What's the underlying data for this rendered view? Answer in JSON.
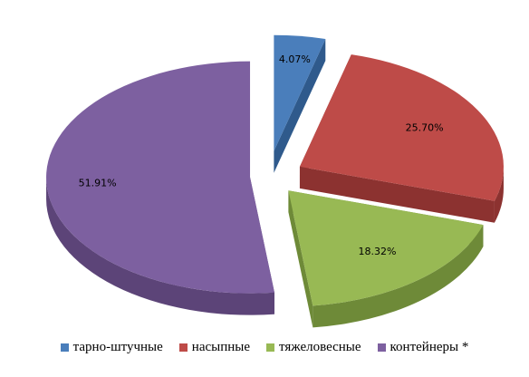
{
  "chart_data": {
    "type": "pie",
    "style": "3d-exploded",
    "title": "",
    "slices": [
      {
        "name": "тарно-штучные",
        "value": 4.07,
        "label": "4.07%",
        "color": "#4a7ebb",
        "side": "#2f5a8c"
      },
      {
        "name": "насыпные",
        "value": 25.7,
        "label": "25.70%",
        "color": "#be4b48",
        "side": "#8c3230"
      },
      {
        "name": "тяжеловесные",
        "value": 18.32,
        "label": "18.32%",
        "color": "#98b954",
        "side": "#6e8a38"
      },
      {
        "name": "контейнеры *",
        "value": 51.91,
        "label": "51.91%",
        "color": "#7d60a0",
        "side": "#5c4478"
      }
    ],
    "legend_position": "bottom"
  }
}
